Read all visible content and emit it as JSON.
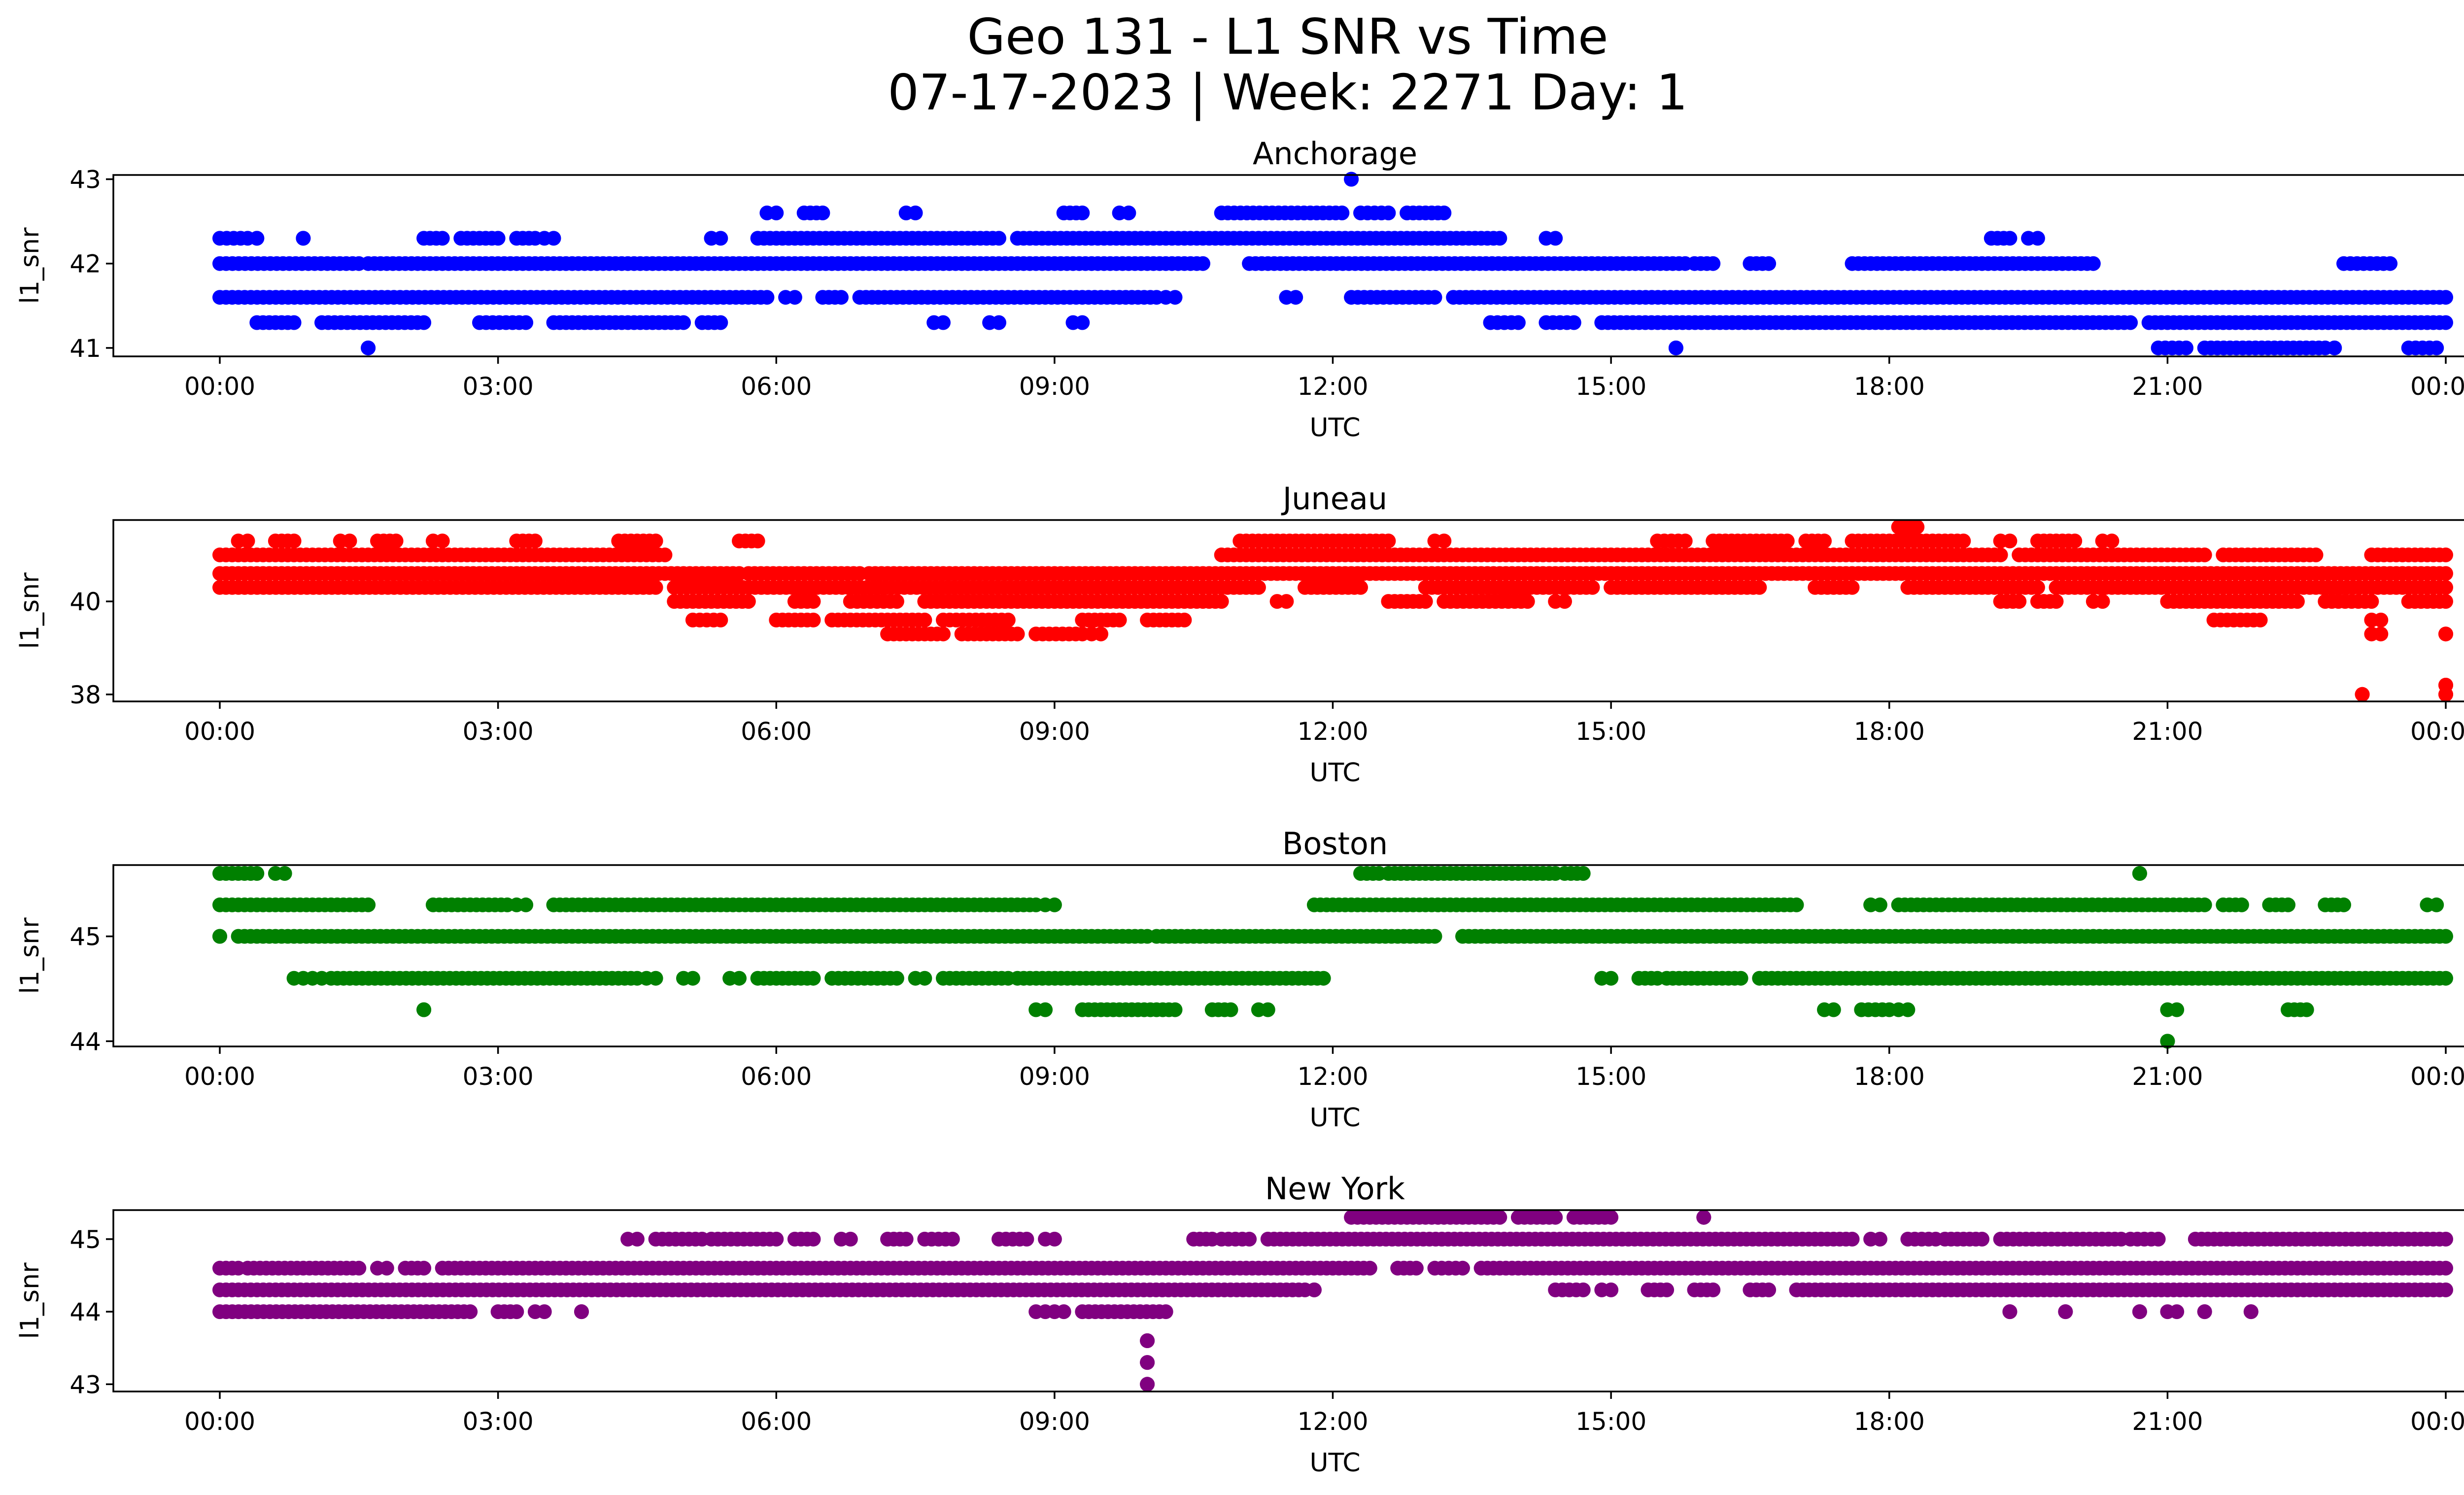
{
  "figure": {
    "title_line1": "Geo 131 - L1 SNR vs Time",
    "title_line2": "07-17-2023 | Week: 2271 Day: 1"
  },
  "chart_data": [
    {
      "type": "scatter",
      "title": "Anchorage",
      "xlabel": "UTC",
      "ylabel": "l1_snr",
      "color": "#0000ff",
      "x_range": [
        "2023-07-17T00:00",
        "2023-07-18T00:00"
      ],
      "x_ticks": [
        "00:00",
        "03:00",
        "06:00",
        "09:00",
        "12:00",
        "15:00",
        "18:00",
        "21:00",
        "00:00"
      ],
      "ylim": [
        40.9,
        43.05
      ],
      "y_ticks": [
        41,
        42,
        43
      ],
      "series": [
        {
          "y": 42.0,
          "segments": [
            [
              0.0,
              1.5
            ],
            [
              1.6,
              10.6
            ],
            [
              11.1,
              15.8
            ],
            [
              15.9,
              16.1
            ],
            [
              16.5,
              16.7
            ],
            [
              17.6,
              20.2
            ],
            [
              22.9,
              23.4
            ]
          ]
        },
        {
          "y": 41.6,
          "segments": [
            [
              0.0,
              5.9
            ],
            [
              6.1,
              6.2
            ],
            [
              6.5,
              6.7
            ],
            [
              6.9,
              10.1
            ],
            [
              10.2,
              10.3
            ],
            [
              11.5,
              11.6
            ],
            [
              12.2,
              13.1
            ],
            [
              13.3,
              24.0
            ]
          ]
        },
        {
          "y": 42.3,
          "segments": [
            [
              0.0,
              0.3
            ],
            [
              0.4,
              0.4
            ],
            [
              0.9,
              0.9
            ],
            [
              2.2,
              2.4
            ],
            [
              2.6,
              3.0
            ],
            [
              3.2,
              3.4
            ],
            [
              3.5,
              3.6
            ],
            [
              5.3,
              5.4
            ],
            [
              5.8,
              8.4
            ],
            [
              8.6,
              13.8
            ],
            [
              14.3,
              14.4
            ],
            [
              19.1,
              19.3
            ],
            [
              19.5,
              19.6
            ]
          ]
        },
        {
          "y": 41.3,
          "segments": [
            [
              0.4,
              0.8
            ],
            [
              1.1,
              2.2
            ],
            [
              2.8,
              3.3
            ],
            [
              3.6,
              5.0
            ],
            [
              5.2,
              5.4
            ],
            [
              7.7,
              7.8
            ],
            [
              8.3,
              8.4
            ],
            [
              9.2,
              9.3
            ],
            [
              13.7,
              14.0
            ],
            [
              14.3,
              14.6
            ],
            [
              14.9,
              20.6
            ],
            [
              20.8,
              24.0
            ]
          ]
        },
        {
          "y": 42.6,
          "segments": [
            [
              5.9,
              6.0
            ],
            [
              6.3,
              6.5
            ],
            [
              7.4,
              7.5
            ],
            [
              9.1,
              9.3
            ],
            [
              9.7,
              9.8
            ],
            [
              10.8,
              12.1
            ],
            [
              12.3,
              12.6
            ],
            [
              12.8,
              13.2
            ]
          ]
        },
        {
          "y": 41.0,
          "segments": [
            [
              1.6,
              1.6
            ],
            [
              15.7,
              15.7
            ],
            [
              20.9,
              21.2
            ],
            [
              21.4,
              22.7
            ],
            [
              22.8,
              22.8
            ],
            [
              23.6,
              23.9
            ]
          ]
        },
        {
          "y": 43.0,
          "segments": [
            [
              12.2,
              12.2
            ]
          ]
        }
      ]
    },
    {
      "type": "scatter",
      "title": "Juneau",
      "xlabel": "UTC",
      "ylabel": "l1_snr",
      "color": "#ff0000",
      "x_range": [
        "2023-07-17T00:00",
        "2023-07-18T00:00"
      ],
      "x_ticks": [
        "00:00",
        "03:00",
        "06:00",
        "09:00",
        "12:00",
        "15:00",
        "18:00",
        "21:00",
        "00:00"
      ],
      "ylim": [
        37.85,
        41.75
      ],
      "y_ticks": [
        38,
        40
      ],
      "series": [
        {
          "y": 41.0,
          "segments": [
            [
              0.0,
              4.8
            ],
            [
              10.8,
              19.2
            ],
            [
              19.4,
              21.4
            ],
            [
              21.6,
              22.6
            ],
            [
              23.2,
              24.0
            ]
          ]
        },
        {
          "y": 40.6,
          "segments": [
            [
              0.0,
              5.6
            ],
            [
              5.7,
              6.9
            ],
            [
              7.0,
              24.0
            ]
          ]
        },
        {
          "y": 40.3,
          "segments": [
            [
              0.0,
              4.7
            ],
            [
              4.9,
              11.2
            ],
            [
              11.7,
              12.3
            ],
            [
              13.0,
              14.8
            ],
            [
              15.0,
              16.6
            ],
            [
              17.2,
              17.6
            ],
            [
              18.2,
              19.6
            ],
            [
              19.8,
              24.0
            ]
          ]
        },
        {
          "y": 41.3,
          "segments": [
            [
              0.2,
              0.3
            ],
            [
              0.6,
              0.8
            ],
            [
              1.3,
              1.4
            ],
            [
              1.7,
              1.9
            ],
            [
              2.3,
              2.4
            ],
            [
              3.2,
              3.4
            ],
            [
              4.3,
              4.7
            ],
            [
              5.6,
              5.8
            ],
            [
              11.0,
              12.6
            ],
            [
              13.1,
              13.2
            ],
            [
              15.5,
              15.8
            ],
            [
              16.1,
              16.9
            ],
            [
              17.1,
              17.3
            ],
            [
              17.6,
              18.8
            ],
            [
              19.2,
              19.3
            ],
            [
              19.6,
              20.0
            ],
            [
              20.3,
              20.4
            ]
          ]
        },
        {
          "y": 40.0,
          "segments": [
            [
              4.9,
              5.7
            ],
            [
              6.2,
              6.4
            ],
            [
              6.8,
              7.3
            ],
            [
              7.6,
              10.8
            ],
            [
              11.4,
              11.5
            ],
            [
              12.6,
              13.0
            ],
            [
              13.2,
              14.1
            ],
            [
              14.4,
              14.5
            ],
            [
              19.2,
              19.4
            ],
            [
              19.6,
              19.8
            ],
            [
              20.2,
              20.3
            ],
            [
              21.0,
              22.4
            ],
            [
              22.7,
              23.2
            ],
            [
              23.6,
              24.0
            ]
          ]
        },
        {
          "y": 39.6,
          "segments": [
            [
              5.1,
              5.4
            ],
            [
              6.0,
              6.4
            ],
            [
              6.6,
              7.6
            ],
            [
              7.8,
              8.5
            ],
            [
              9.3,
              9.7
            ],
            [
              10.0,
              10.4
            ],
            [
              21.5,
              22.0
            ],
            [
              23.2,
              23.3
            ]
          ]
        },
        {
          "y": 39.3,
          "segments": [
            [
              7.2,
              7.8
            ],
            [
              8.0,
              8.6
            ],
            [
              8.8,
              9.3
            ],
            [
              9.4,
              9.5
            ],
            [
              23.2,
              23.3
            ],
            [
              24.0,
              24.0
            ]
          ]
        },
        {
          "y": 41.6,
          "segments": [
            [
              18.1,
              18.3
            ]
          ]
        },
        {
          "y": 38.0,
          "segments": [
            [
              23.1,
              23.1
            ],
            [
              24.0,
              24.0
            ]
          ]
        },
        {
          "y": 38.2,
          "segments": [
            [
              24.0,
              24.0
            ]
          ]
        }
      ]
    },
    {
      "type": "scatter",
      "title": "Boston",
      "xlabel": "UTC",
      "ylabel": "l1_snr",
      "color": "#008000",
      "x_range": [
        "2023-07-17T00:00",
        "2023-07-18T00:00"
      ],
      "x_ticks": [
        "00:00",
        "03:00",
        "06:00",
        "09:00",
        "12:00",
        "15:00",
        "18:00",
        "21:00",
        "00:00"
      ],
      "ylim": [
        43.95,
        45.68
      ],
      "y_ticks": [
        44,
        45
      ],
      "series": [
        {
          "y": 45.0,
          "segments": [
            [
              0.0,
              0.0
            ],
            [
              0.2,
              10.0
            ],
            [
              10.1,
              13.1
            ],
            [
              13.4,
              24.0
            ]
          ]
        },
        {
          "y": 45.3,
          "segments": [
            [
              0.0,
              1.6
            ],
            [
              2.3,
              3.1
            ],
            [
              3.2,
              3.3
            ],
            [
              3.6,
              8.8
            ],
            [
              8.9,
              9.0
            ],
            [
              11.8,
              17.0
            ],
            [
              17.8,
              17.9
            ],
            [
              18.1,
              21.4
            ],
            [
              21.6,
              21.8
            ],
            [
              22.1,
              22.3
            ],
            [
              22.7,
              22.9
            ],
            [
              23.8,
              23.9
            ]
          ]
        },
        {
          "y": 44.6,
          "segments": [
            [
              0.8,
              0.9
            ],
            [
              1.0,
              1.1
            ],
            [
              1.2,
              4.5
            ],
            [
              4.6,
              4.7
            ],
            [
              5.0,
              5.1
            ],
            [
              5.5,
              5.6
            ],
            [
              5.8,
              6.4
            ],
            [
              6.6,
              7.3
            ],
            [
              7.5,
              7.6
            ],
            [
              7.8,
              8.5
            ],
            [
              8.6,
              11.9
            ],
            [
              14.9,
              15.0
            ],
            [
              15.3,
              15.5
            ],
            [
              15.6,
              16.4
            ],
            [
              16.6,
              24.0
            ]
          ]
        },
        {
          "y": 45.6,
          "segments": [
            [
              0.0,
              0.4
            ],
            [
              0.6,
              0.7
            ],
            [
              12.3,
              12.5
            ],
            [
              12.6,
              14.4
            ],
            [
              14.5,
              14.7
            ],
            [
              20.7,
              20.7
            ]
          ]
        },
        {
          "y": 44.3,
          "segments": [
            [
              2.2,
              2.2
            ],
            [
              8.8,
              8.9
            ],
            [
              9.3,
              10.3
            ],
            [
              10.7,
              10.9
            ],
            [
              11.2,
              11.3
            ],
            [
              17.3,
              17.4
            ],
            [
              17.7,
              18.0
            ],
            [
              18.1,
              18.2
            ],
            [
              21.0,
              21.1
            ],
            [
              22.3,
              22.5
            ]
          ]
        },
        {
          "y": 44.0,
          "segments": [
            [
              21.0,
              21.0
            ]
          ]
        }
      ]
    },
    {
      "type": "scatter",
      "title": "New York",
      "xlabel": "UTC",
      "ylabel": "l1_snr",
      "color": "#800080",
      "x_range": [
        "2023-07-17T00:00",
        "2023-07-18T00:00"
      ],
      "x_ticks": [
        "00:00",
        "03:00",
        "06:00",
        "09:00",
        "12:00",
        "15:00",
        "18:00",
        "21:00",
        "00:00"
      ],
      "ylim": [
        42.9,
        45.4
      ],
      "y_ticks": [
        43,
        44,
        45
      ],
      "series": [
        {
          "y": 44.6,
          "segments": [
            [
              0.0,
              0.2
            ],
            [
              0.3,
              1.5
            ],
            [
              1.7,
              1.8
            ],
            [
              2.0,
              2.2
            ],
            [
              2.4,
              12.4
            ],
            [
              12.7,
              12.9
            ],
            [
              13.1,
              13.4
            ],
            [
              13.6,
              24.0
            ]
          ]
        },
        {
          "y": 44.3,
          "segments": [
            [
              0.0,
              11.7
            ],
            [
              11.8,
              11.8
            ],
            [
              14.4,
              14.7
            ],
            [
              14.9,
              15.0
            ],
            [
              15.4,
              15.6
            ],
            [
              15.9,
              16.1
            ],
            [
              16.5,
              16.7
            ],
            [
              17.0,
              24.0
            ]
          ]
        },
        {
          "y": 44.0,
          "segments": [
            [
              0.0,
              2.7
            ],
            [
              3.0,
              3.2
            ],
            [
              3.4,
              3.5
            ],
            [
              3.9,
              3.9
            ],
            [
              8.8,
              8.9
            ],
            [
              9.0,
              9.1
            ],
            [
              9.3,
              10.2
            ],
            [
              19.3,
              19.3
            ],
            [
              19.9,
              19.9
            ],
            [
              20.7,
              20.7
            ],
            [
              21.0,
              21.1
            ],
            [
              21.4,
              21.4
            ],
            [
              21.9,
              21.9
            ]
          ]
        },
        {
          "y": 45.0,
          "segments": [
            [
              4.4,
              4.5
            ],
            [
              4.7,
              5.2
            ],
            [
              5.3,
              6.0
            ],
            [
              6.2,
              6.4
            ],
            [
              6.7,
              6.8
            ],
            [
              7.2,
              7.4
            ],
            [
              7.6,
              7.9
            ],
            [
              8.4,
              8.7
            ],
            [
              8.9,
              9.0
            ],
            [
              10.5,
              10.7
            ],
            [
              10.8,
              11.1
            ],
            [
              11.3,
              17.6
            ],
            [
              17.8,
              17.9
            ],
            [
              18.2,
              18.5
            ],
            [
              18.6,
              19.0
            ],
            [
              19.2,
              20.5
            ],
            [
              20.6,
              20.9
            ],
            [
              21.3,
              24.0
            ]
          ]
        },
        {
          "y": 45.3,
          "segments": [
            [
              12.2,
              13.8
            ],
            [
              14.0,
              14.4
            ],
            [
              14.6,
              15.0
            ],
            [
              16.0,
              16.0
            ]
          ]
        },
        {
          "y": 43.6,
          "segments": [
            [
              10.0,
              10.0
            ]
          ]
        },
        {
          "y": 43.3,
          "segments": [
            [
              10.0,
              10.0
            ]
          ]
        },
        {
          "y": 43.0,
          "segments": [
            [
              10.0,
              10.0
            ]
          ]
        }
      ]
    }
  ]
}
